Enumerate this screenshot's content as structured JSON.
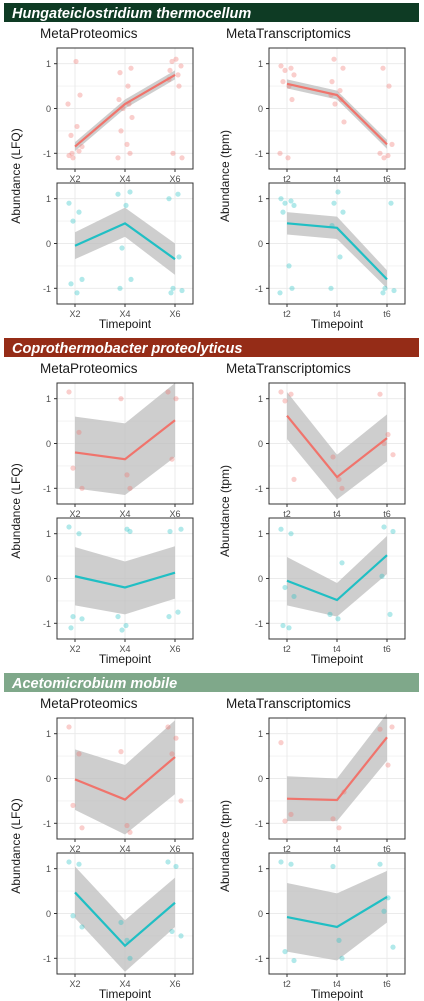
{
  "colors": {
    "red": "#F0746C",
    "teal": "#20BFC4",
    "band": "#BEBEBE",
    "panel_border": "#333333",
    "grid": "#EBEBEB",
    "banner": [
      "#0E3B24",
      "#952C17",
      "#7FA88A"
    ]
  },
  "labels": {
    "proteomics": "MetaProteomics",
    "transcriptomics": "MetaTranscriptomics",
    "ylabel_left": "Abundance (LFQ)",
    "ylabel_right": "Abundance (tpm)",
    "xlabel": "Timepoint"
  },
  "chart_data": [
    {
      "type": "line",
      "title": "Hungateiclostridium thermocellum",
      "panels": [
        {
          "row": 0,
          "col": 0,
          "x": [
            "X2",
            "X4",
            "X6"
          ],
          "ylabel": "Abundance (LFQ)",
          "color": "red",
          "mean": [
            -0.85,
            0.1,
            0.75
          ],
          "ci_low": [
            -0.95,
            0.0,
            0.65
          ],
          "ci_high": [
            -0.75,
            0.2,
            0.85
          ],
          "points": [
            [
              0,
              -1.05
            ],
            [
              0,
              -0.95
            ],
            [
              0,
              -1.1
            ],
            [
              0,
              -0.85
            ],
            [
              0,
              -0.6
            ],
            [
              0,
              -0.4
            ],
            [
              0,
              0.3
            ],
            [
              0,
              0.1
            ],
            [
              0,
              1.05
            ],
            [
              0,
              -1.0
            ],
            [
              1,
              0.9
            ],
            [
              1,
              0.8
            ],
            [
              1,
              0.5
            ],
            [
              1,
              0.2
            ],
            [
              1,
              0.1
            ],
            [
              1,
              0.0
            ],
            [
              1,
              -0.2
            ],
            [
              1,
              -0.5
            ],
            [
              1,
              -0.8
            ],
            [
              1,
              -1.0
            ],
            [
              1,
              -1.1
            ],
            [
              2,
              1.1
            ],
            [
              2,
              1.05
            ],
            [
              2,
              0.95
            ],
            [
              2,
              0.85
            ],
            [
              2,
              0.75
            ],
            [
              2,
              0.65
            ],
            [
              2,
              0.5
            ],
            [
              2,
              -1.0
            ],
            [
              2,
              -1.1
            ]
          ]
        },
        {
          "row": 0,
          "col": 1,
          "x": [
            "t2",
            "t4",
            "t6"
          ],
          "ylabel": "Abundance (tpm)",
          "color": "red",
          "mean": [
            0.55,
            0.3,
            -0.8
          ],
          "ci_low": [
            0.45,
            0.2,
            -0.9
          ],
          "ci_high": [
            0.65,
            0.4,
            -0.7
          ],
          "points": [
            [
              0,
              0.95
            ],
            [
              0,
              0.9
            ],
            [
              0,
              0.85
            ],
            [
              0,
              0.75
            ],
            [
              0,
              0.6
            ],
            [
              0,
              0.5
            ],
            [
              0,
              0.2
            ],
            [
              0,
              -1.0
            ],
            [
              0,
              -1.1
            ],
            [
              1,
              1.1
            ],
            [
              1,
              0.9
            ],
            [
              1,
              0.6
            ],
            [
              1,
              0.4
            ],
            [
              1,
              0.3
            ],
            [
              1,
              0.2
            ],
            [
              1,
              0.1
            ],
            [
              1,
              -0.3
            ],
            [
              2,
              0.9
            ],
            [
              2,
              0.5
            ],
            [
              2,
              -0.8
            ],
            [
              2,
              -1.0
            ],
            [
              2,
              -1.05
            ],
            [
              2,
              -1.1
            ]
          ]
        },
        {
          "row": 1,
          "col": 0,
          "x": [
            "X2",
            "X4",
            "X6"
          ],
          "ylabel": "Abundance (LFQ)",
          "color": "teal",
          "mean": [
            -0.05,
            0.45,
            -0.35
          ],
          "ci_low": [
            -0.35,
            0.15,
            -0.7
          ],
          "ci_high": [
            0.25,
            0.8,
            0.0
          ],
          "points": [
            [
              0,
              0.9
            ],
            [
              0,
              0.7
            ],
            [
              0,
              0.5
            ],
            [
              0,
              -0.8
            ],
            [
              0,
              -0.9
            ],
            [
              0,
              -1.1
            ],
            [
              1,
              1.15
            ],
            [
              1,
              1.1
            ],
            [
              1,
              0.85
            ],
            [
              1,
              -0.1
            ],
            [
              1,
              -0.8
            ],
            [
              1,
              -1.0
            ],
            [
              2,
              1.1
            ],
            [
              2,
              1.0
            ],
            [
              2,
              -0.3
            ],
            [
              2,
              -1.0
            ],
            [
              2,
              -1.05
            ],
            [
              2,
              -1.1
            ]
          ]
        },
        {
          "row": 1,
          "col": 1,
          "x": [
            "t2",
            "t4",
            "t6"
          ],
          "ylabel": "Abundance (tpm)",
          "color": "teal",
          "mean": [
            0.45,
            0.35,
            -0.8
          ],
          "ci_low": [
            0.2,
            0.1,
            -1.0
          ],
          "ci_high": [
            0.7,
            0.6,
            -0.6
          ],
          "points": [
            [
              0,
              1.0
            ],
            [
              0,
              0.95
            ],
            [
              0,
              0.9
            ],
            [
              0,
              0.85
            ],
            [
              0,
              0.7
            ],
            [
              0,
              -0.5
            ],
            [
              0,
              -1.0
            ],
            [
              0,
              -1.1
            ],
            [
              1,
              1.15
            ],
            [
              1,
              0.9
            ],
            [
              1,
              0.7
            ],
            [
              1,
              0.4
            ],
            [
              1,
              -0.3
            ],
            [
              1,
              -1.0
            ],
            [
              2,
              0.9
            ],
            [
              2,
              -1.0
            ],
            [
              2,
              -1.05
            ],
            [
              2,
              -1.1
            ]
          ]
        }
      ]
    },
    {
      "type": "line",
      "title": "Coprothermobacter proteolyticus",
      "panels": [
        {
          "row": 0,
          "col": 0,
          "x": [
            "X2",
            "X4",
            "X6"
          ],
          "ylabel": "Abundance (LFQ)",
          "color": "red",
          "mean": [
            -0.2,
            -0.35,
            0.52
          ],
          "ci_low": [
            -1.0,
            -1.15,
            -0.3
          ],
          "ci_high": [
            0.6,
            0.45,
            1.35
          ],
          "points": [
            [
              0,
              1.15
            ],
            [
              0,
              0.25
            ],
            [
              0,
              -0.55
            ],
            [
              0,
              -1.0
            ],
            [
              1,
              1.0
            ],
            [
              1,
              -0.7
            ],
            [
              1,
              -1.0
            ],
            [
              2,
              1.15
            ],
            [
              2,
              1.0
            ],
            [
              2,
              -0.35
            ]
          ]
        },
        {
          "row": 0,
          "col": 1,
          "x": [
            "t2",
            "t4",
            "t6"
          ],
          "ylabel": "Abundance (tpm)",
          "color": "red",
          "mean": [
            0.62,
            -0.75,
            0.12
          ],
          "ci_low": [
            0.1,
            -1.25,
            -0.4
          ],
          "ci_high": [
            1.15,
            -0.25,
            0.65
          ],
          "points": [
            [
              0,
              1.15
            ],
            [
              0,
              1.1
            ],
            [
              0,
              0.95
            ],
            [
              0,
              -0.8
            ],
            [
              1,
              -0.3
            ],
            [
              1,
              -0.8
            ],
            [
              1,
              -1.0
            ],
            [
              2,
              1.1
            ],
            [
              2,
              0.2
            ],
            [
              2,
              0.0
            ],
            [
              2,
              -0.25
            ]
          ]
        },
        {
          "row": 1,
          "col": 0,
          "x": [
            "X2",
            "X4",
            "X6"
          ],
          "ylabel": "Abundance (LFQ)",
          "color": "teal",
          "mean": [
            0.05,
            -0.2,
            0.13
          ],
          "ci_low": [
            -0.6,
            -0.8,
            -0.45
          ],
          "ci_high": [
            0.7,
            0.38,
            0.72
          ],
          "points": [
            [
              0,
              1.15
            ],
            [
              0,
              1.0
            ],
            [
              0,
              -0.85
            ],
            [
              0,
              -0.9
            ],
            [
              0,
              -1.1
            ],
            [
              1,
              1.1
            ],
            [
              1,
              1.05
            ],
            [
              1,
              -0.85
            ],
            [
              1,
              -1.05
            ],
            [
              1,
              -1.15
            ],
            [
              2,
              1.1
            ],
            [
              2,
              1.05
            ],
            [
              2,
              -0.75
            ],
            [
              2,
              -0.85
            ]
          ]
        },
        {
          "row": 1,
          "col": 1,
          "x": [
            "t2",
            "t4",
            "t6"
          ],
          "ylabel": "Abundance (tpm)",
          "color": "teal",
          "mean": [
            -0.05,
            -0.48,
            0.52
          ],
          "ci_low": [
            -0.6,
            -0.85,
            0.1
          ],
          "ci_high": [
            0.48,
            -0.1,
            0.95
          ],
          "points": [
            [
              0,
              1.1
            ],
            [
              0,
              1.0
            ],
            [
              0,
              -0.2
            ],
            [
              0,
              -0.4
            ],
            [
              0,
              -1.05
            ],
            [
              0,
              -1.1
            ],
            [
              1,
              0.35
            ],
            [
              1,
              -0.8
            ],
            [
              1,
              -0.9
            ],
            [
              2,
              1.15
            ],
            [
              2,
              1.05
            ],
            [
              2,
              0.05
            ],
            [
              2,
              -0.8
            ]
          ]
        }
      ]
    },
    {
      "type": "line",
      "title": "Acetomicrobium mobile",
      "panels": [
        {
          "row": 0,
          "col": 0,
          "x": [
            "X2",
            "X4",
            "X6"
          ],
          "ylabel": "Abundance (LFQ)",
          "color": "red",
          "mean": [
            -0.02,
            -0.47,
            0.48
          ],
          "ci_low": [
            -0.7,
            -1.25,
            -0.35
          ],
          "ci_high": [
            0.65,
            0.3,
            1.3
          ],
          "points": [
            [
              0,
              1.15
            ],
            [
              0,
              0.55
            ],
            [
              0,
              -0.6
            ],
            [
              0,
              -1.1
            ],
            [
              1,
              0.6
            ],
            [
              1,
              -1.05
            ],
            [
              1,
              -1.2
            ],
            [
              2,
              1.15
            ],
            [
              2,
              0.9
            ],
            [
              2,
              0.55
            ],
            [
              2,
              -0.5
            ]
          ]
        },
        {
          "row": 0,
          "col": 1,
          "x": [
            "t2",
            "t4",
            "t6"
          ],
          "ylabel": "Abundance (tpm)",
          "color": "red",
          "mean": [
            -0.45,
            -0.48,
            0.92
          ],
          "ci_low": [
            -0.95,
            -0.95,
            0.4
          ],
          "ci_high": [
            0.05,
            0.0,
            1.45
          ],
          "points": [
            [
              0,
              0.8
            ],
            [
              0,
              -0.8
            ],
            [
              0,
              -0.95
            ],
            [
              1,
              -0.3
            ],
            [
              1,
              -0.9
            ],
            [
              1,
              -1.1
            ],
            [
              2,
              1.15
            ],
            [
              2,
              1.1
            ],
            [
              2,
              0.3
            ]
          ]
        },
        {
          "row": 1,
          "col": 0,
          "x": [
            "X2",
            "X4",
            "X6"
          ],
          "ylabel": "Abundance (LFQ)",
          "color": "teal",
          "mean": [
            0.47,
            -0.72,
            0.24
          ],
          "ci_low": [
            -0.1,
            -1.3,
            -0.3
          ],
          "ci_high": [
            1.05,
            -0.15,
            0.8
          ],
          "points": [
            [
              0,
              1.15
            ],
            [
              0,
              1.1
            ],
            [
              0,
              -0.05
            ],
            [
              0,
              -0.3
            ],
            [
              1,
              -0.2
            ],
            [
              1,
              -0.6
            ],
            [
              1,
              -1.0
            ],
            [
              2,
              1.15
            ],
            [
              2,
              1.05
            ],
            [
              2,
              -0.4
            ],
            [
              2,
              -0.5
            ]
          ]
        },
        {
          "row": 1,
          "col": 1,
          "x": [
            "t2",
            "t4",
            "t6"
          ],
          "ylabel": "Abundance (tpm)",
          "color": "teal",
          "mean": [
            -0.08,
            -0.3,
            0.37
          ],
          "ci_low": [
            -0.85,
            -1.05,
            -0.2
          ],
          "ci_high": [
            0.68,
            0.45,
            0.95
          ],
          "points": [
            [
              0,
              1.15
            ],
            [
              0,
              1.1
            ],
            [
              0,
              -0.85
            ],
            [
              0,
              -1.05
            ],
            [
              1,
              1.05
            ],
            [
              1,
              -0.6
            ],
            [
              1,
              -1.0
            ],
            [
              2,
              1.1
            ],
            [
              2,
              0.35
            ],
            [
              2,
              0.05
            ],
            [
              2,
              -0.75
            ]
          ]
        }
      ]
    }
  ]
}
